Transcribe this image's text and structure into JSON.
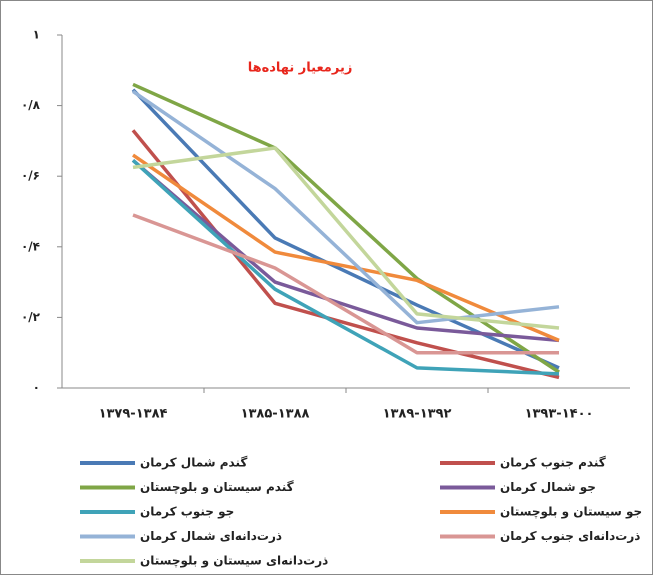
{
  "chart_data": {
    "type": "line",
    "title": "زیرمعیار نهاده‌ها",
    "categories": [
      "۱۳۷۹-۱۳۸۴",
      "۱۳۸۵-۱۳۸۸",
      "۱۳۸۹-۱۳۹۲",
      "۱۳۹۳-۱۴۰۰"
    ],
    "ylim": [
      0,
      1
    ],
    "yticks": [
      {
        "value": 0,
        "label": "۰"
      },
      {
        "value": 0.2,
        "label": "۰/۲"
      },
      {
        "value": 0.4,
        "label": "۰/۴"
      },
      {
        "value": 0.6,
        "label": "۰/۶"
      },
      {
        "value": 0.8,
        "label": "۰/۸"
      },
      {
        "value": 1,
        "label": "۱"
      }
    ],
    "series": [
      {
        "name": "گندم شمال کرمان",
        "color": "#4a7ab5",
        "values": [
          0.845,
          0.425,
          0.235,
          0.057
        ]
      },
      {
        "name": "گندم جنوب کرمان",
        "color": "#c0504d",
        "values": [
          0.73,
          0.24,
          0.128,
          0.03
        ]
      },
      {
        "name": "گندم سیستان و بلوچستان",
        "color": "#7fa646",
        "values": [
          0.86,
          0.68,
          0.31,
          0.045
        ]
      },
      {
        "name": "جو شمال کرمان",
        "color": "#7a5a9a",
        "values": [
          0.645,
          0.3,
          0.17,
          0.135
        ]
      },
      {
        "name": "جو جنوب کرمان",
        "color": "#3fa3b8",
        "values": [
          0.645,
          0.28,
          0.057,
          0.04
        ]
      },
      {
        "name": "جو سیستان و بلوچستان",
        "color": "#f08a3c",
        "values": [
          0.66,
          0.385,
          0.305,
          0.135
        ]
      },
      {
        "name": "ذرت‌دانه‌ای شمال کرمان",
        "color": "#95b3d7",
        "values": [
          0.84,
          0.565,
          0.185,
          0.23
        ]
      },
      {
        "name": "ذرت‌دانه‌ای جنوب کرمان",
        "color": "#d99694",
        "values": [
          0.49,
          0.34,
          0.1,
          0.1
        ]
      },
      {
        "name": "ذرت‌دانه‌ای سیستان و بلوچستان",
        "color": "#c3d69b",
        "values": [
          0.625,
          0.68,
          0.21,
          0.17
        ]
      }
    ]
  }
}
